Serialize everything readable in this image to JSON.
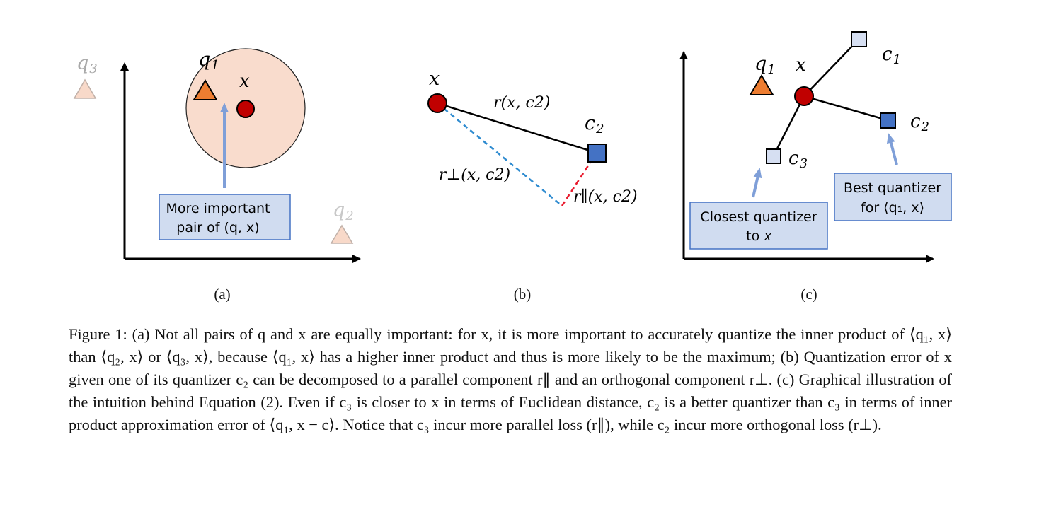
{
  "panel_a": {
    "q1": "q",
    "q1_sub": "1",
    "q2": "q",
    "q2_sub": "2",
    "q3": "q",
    "q3_sub": "3",
    "x": "x",
    "box_line1": "More important",
    "box_line2": "pair of (q, x)"
  },
  "panel_b": {
    "x": "x",
    "c2": "c",
    "c2_sub": "2",
    "r": "r(x, c",
    "r_close": "2)",
    "r_perp": "r⊥(x, c",
    "r_perp_close": "2)",
    "r_par": "r∥(x, c",
    "r_par_close": "2)"
  },
  "panel_c": {
    "q1": "q",
    "q1_sub": "1",
    "x": "x",
    "c1": "c",
    "c1_sub": "1",
    "c2": "c",
    "c2_sub": "2",
    "c3": "c",
    "c3_sub": "3",
    "box_left_line1": "Closest quantizer",
    "box_left_line2": "to 𝑥",
    "box_right_line1": "Best quantizer",
    "box_right_line2": "for ⟨q₁, x⟩"
  },
  "sublabels": {
    "a": "(a)",
    "b": "(b)",
    "c": "(c)"
  },
  "caption": {
    "label": "Figure 1:",
    "text": "(a) Not all pairs of q and x are equally important: for x, it is more important to accurately quantize the inner product of ⟨q₁, x⟩ than ⟨q₂, x⟩ or ⟨q₃, x⟩, because ⟨q₁, x⟩ has a higher inner product and thus is more likely to be the maximum; (b) Quantization error of x given one of its quantizer c₂ can be decomposed to a parallel component r∥ and an orthogonal component r⊥. (c) Graphical illustration of the intuition behind Equation (2). Even if c₃ is closer to x in terms of Euclidean distance, c₂ is a better quantizer than c₃ in terms of inner product approximation error of ⟨q₁, x − c⟩. Notice that c₃ incur more parallel loss (r∥), while c₂ incur more orthogonal loss (r⊥)."
  },
  "colors": {
    "red_point": "#c00000",
    "orange_triangle": "#ed7d31",
    "faded_triangle": "#f8d9c9",
    "circle_fill": "#f9dccd",
    "blue_square": "#4472c4",
    "light_square": "#d6dff2",
    "box_fill": "#d0dcf0",
    "box_border": "#4472c4",
    "arrow_blue": "#7f9fd8",
    "dash_blue": "#2e8bd0",
    "dash_red": "#e8192c"
  }
}
